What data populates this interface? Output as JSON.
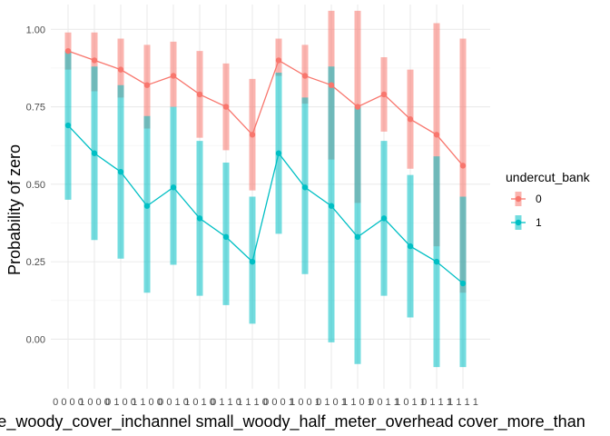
{
  "chart_data": {
    "type": "line",
    "title": "",
    "xlabel": "large_woody_cover_inchannel small_woody_half_meter_overhead cover_more_than",
    "ylabel": "Probability of zero",
    "ylim": [
      -0.16,
      1.08
    ],
    "yticks": [
      0.0,
      0.25,
      0.5,
      0.75,
      1.0
    ],
    "ytick_labels": [
      "0.00",
      "0.25",
      "0.50",
      "0.75",
      "1.00"
    ],
    "grid": true,
    "x_tick_labels": [
      "0 0 0 0",
      "1 0 0 0",
      "0 1 0 0",
      "1 1 0 0",
      "0 0 1 0",
      "1 0 1 0",
      "0 1 1 0",
      "1 1 1 0",
      "0 0 0 1",
      "1 0 0 1",
      "0 1 0 1",
      "1 1 0 1",
      "0 0 1 1",
      "1 0 1 1",
      "0 1 1 1",
      "1 1 1 1"
    ],
    "legend": {
      "title": "undercut_bank",
      "position": "right"
    },
    "series": [
      {
        "name": "0",
        "color": "#F8766D",
        "values": [
          0.93,
          0.9,
          0.87,
          0.82,
          0.85,
          0.79,
          0.75,
          0.66,
          0.9,
          0.85,
          0.82,
          0.75,
          0.79,
          0.71,
          0.66,
          0.56
        ],
        "lower": [
          0.87,
          0.8,
          0.78,
          0.68,
          0.75,
          0.65,
          0.61,
          0.48,
          0.85,
          0.76,
          0.58,
          0.44,
          0.67,
          0.55,
          0.3,
          0.15
        ],
        "upper": [
          0.99,
          0.99,
          0.97,
          0.95,
          0.96,
          0.93,
          0.89,
          0.84,
          0.97,
          0.95,
          1.06,
          1.06,
          0.91,
          0.87,
          1.02,
          0.97
        ]
      },
      {
        "name": "1",
        "color": "#00BFC4",
        "values": [
          0.69,
          0.6,
          0.54,
          0.43,
          0.49,
          0.39,
          0.33,
          0.25,
          0.6,
          0.49,
          0.43,
          0.33,
          0.39,
          0.3,
          0.25,
          0.18
        ],
        "lower": [
          0.45,
          0.32,
          0.26,
          0.15,
          0.24,
          0.14,
          0.11,
          0.05,
          0.34,
          0.21,
          -0.01,
          -0.08,
          0.14,
          0.07,
          -0.09,
          -0.09
        ],
        "upper": [
          0.93,
          0.88,
          0.82,
          0.72,
          0.75,
          0.64,
          0.57,
          0.46,
          0.86,
          0.78,
          0.88,
          0.75,
          0.64,
          0.53,
          0.59,
          0.46
        ]
      }
    ]
  }
}
